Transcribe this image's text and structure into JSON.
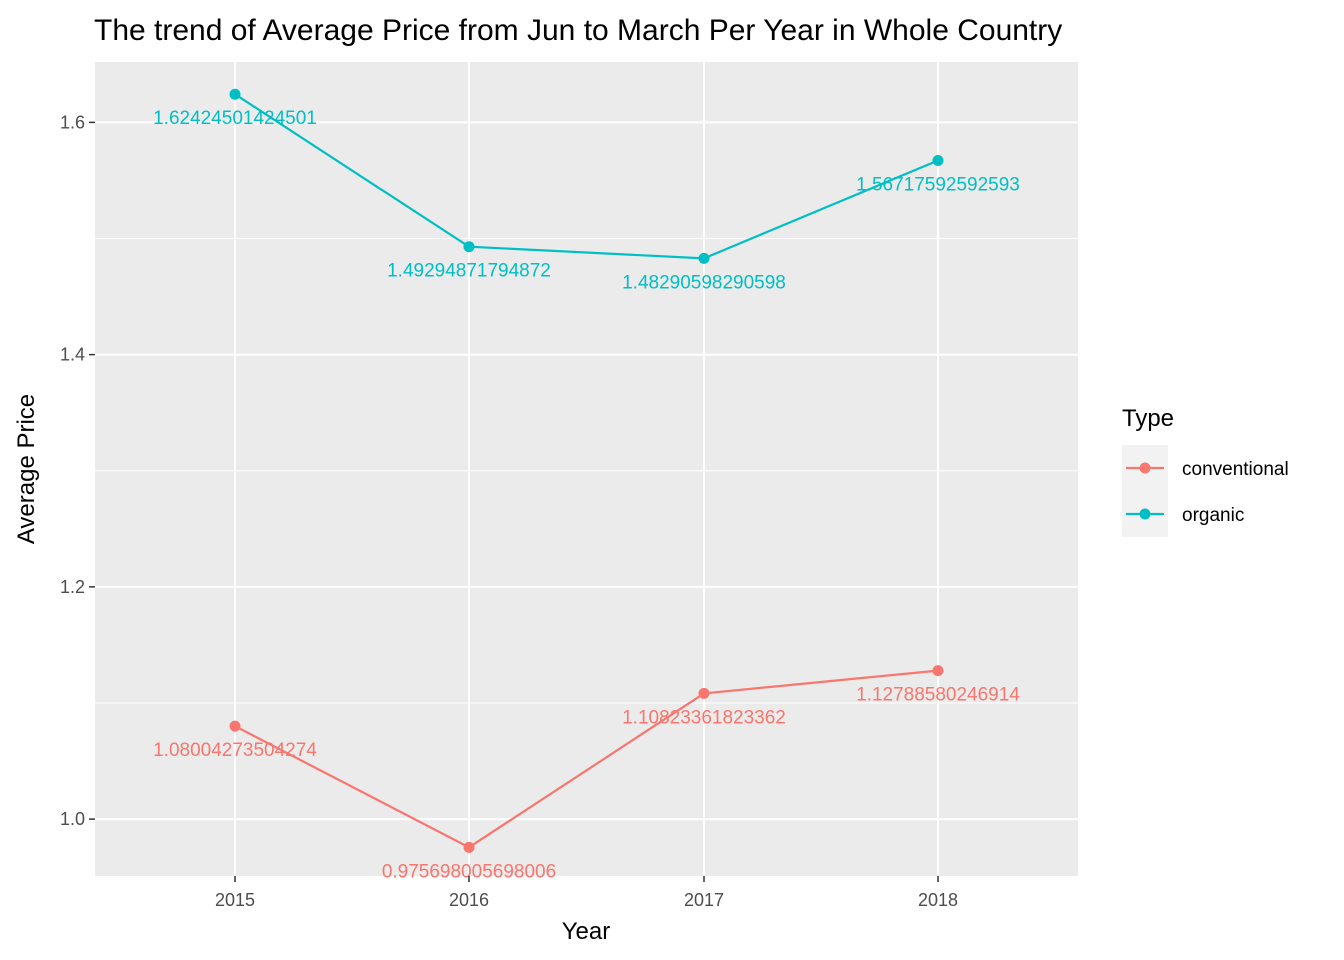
{
  "chart_data": {
    "type": "line",
    "title": "The trend of Average Price from Jun to March Per Year in Whole Country",
    "xlabel": "Year",
    "ylabel": "Average Price",
    "x": [
      "2015",
      "2016",
      "2017",
      "2018"
    ],
    "ylim": [
      0.951,
      1.652
    ],
    "yticks": [
      1.0,
      1.2,
      1.4,
      1.6
    ],
    "ytick_labels": [
      "1.0",
      "1.2",
      "1.4",
      "1.6"
    ],
    "grid": true,
    "legend": {
      "title": "Type",
      "position": "right"
    },
    "series": [
      {
        "name": "conventional",
        "color": "#F8766D",
        "values": [
          1.08004273504274,
          0.975698005698006,
          1.10823361823362,
          1.12788580246914
        ],
        "labels": [
          "1.08004273504274",
          "0.975698005698006",
          "1.10823361823362",
          "1.12788580246914"
        ]
      },
      {
        "name": "organic",
        "color": "#00BFC4",
        "values": [
          1.62424501424501,
          1.49294871794872,
          1.48290598290598,
          1.56717592592593
        ],
        "labels": [
          "1.62424501424501",
          "1.49294871794872",
          "1.48290598290598",
          "1.56717592592593"
        ]
      }
    ]
  }
}
